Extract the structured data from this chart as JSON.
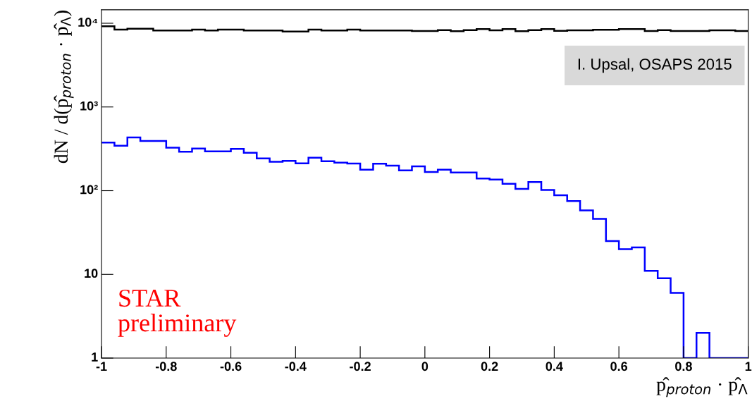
{
  "chart_data": {
    "type": "histogram",
    "bins": [
      -1,
      -0.96,
      -0.92,
      -0.88,
      -0.84,
      -0.8,
      -0.76,
      -0.72,
      -0.68,
      -0.64,
      -0.6,
      -0.56,
      -0.52,
      -0.48,
      -0.44,
      -0.4,
      -0.36,
      -0.32,
      -0.28,
      -0.24,
      -0.2,
      -0.16,
      -0.12,
      -0.08,
      -0.04,
      0,
      0.04,
      0.08,
      0.12,
      0.16,
      0.2,
      0.24,
      0.28,
      0.32,
      0.36,
      0.4,
      0.44,
      0.48,
      0.52,
      0.56,
      0.6,
      0.64,
      0.68,
      0.72,
      0.76,
      0.8,
      0.84,
      0.88,
      0.92,
      0.96,
      1
    ],
    "series": [
      {
        "color": "#000000",
        "values": [
          9200,
          8400,
          8610,
          8610,
          8190,
          8190,
          8190,
          8400,
          8190,
          8400,
          8400,
          8190,
          8190,
          8190,
          7980,
          7980,
          8400,
          8190,
          8190,
          8400,
          8190,
          8190,
          8190,
          8190,
          8080,
          8080,
          8280,
          8020,
          8280,
          8510,
          8240,
          8510,
          8020,
          8280,
          8510,
          8130,
          8240,
          8240,
          8350,
          8350,
          8510,
          8510,
          8080,
          8280,
          8080,
          8080,
          8080,
          8240,
          8240,
          8080
        ]
      },
      {
        "color": "#0000ff",
        "values": [
          375,
          344,
          432,
          393,
          393,
          327,
          292,
          319,
          295,
          295,
          315,
          284,
          243,
          222,
          227,
          212,
          248,
          225,
          216,
          211,
          178,
          210,
          199,
          175,
          195,
          167,
          178,
          165,
          165,
          140,
          136,
          121,
          105,
          127,
          102,
          88,
          75,
          58,
          46,
          25,
          20,
          21,
          11,
          9,
          6,
          1,
          2,
          1,
          1,
          1
        ]
      }
    ],
    "xlabel": "p̂$_{proton}$ · p̂$_{Λ}$",
    "ylabel": "dN / d(p̂$_{proton}$ · p̂$_{Λ}$)",
    "xlim": [
      -1,
      1
    ],
    "ylim": [
      1,
      14500
    ],
    "log": "y",
    "xticks": [
      -1,
      -0.8,
      -0.6,
      -0.4,
      -0.2,
      0,
      0.2,
      0.4,
      0.6,
      0.8,
      1
    ],
    "yticks": [
      1,
      10,
      {
        "value": 100,
        "label": "10²"
      },
      {
        "value": 1000,
        "label": "10³"
      },
      {
        "value": 10000,
        "label": "10⁴"
      }
    ],
    "grid": false,
    "annotations": [
      "I. Upsal, OSAPS 2015",
      "STAR\npreliminary"
    ]
  }
}
